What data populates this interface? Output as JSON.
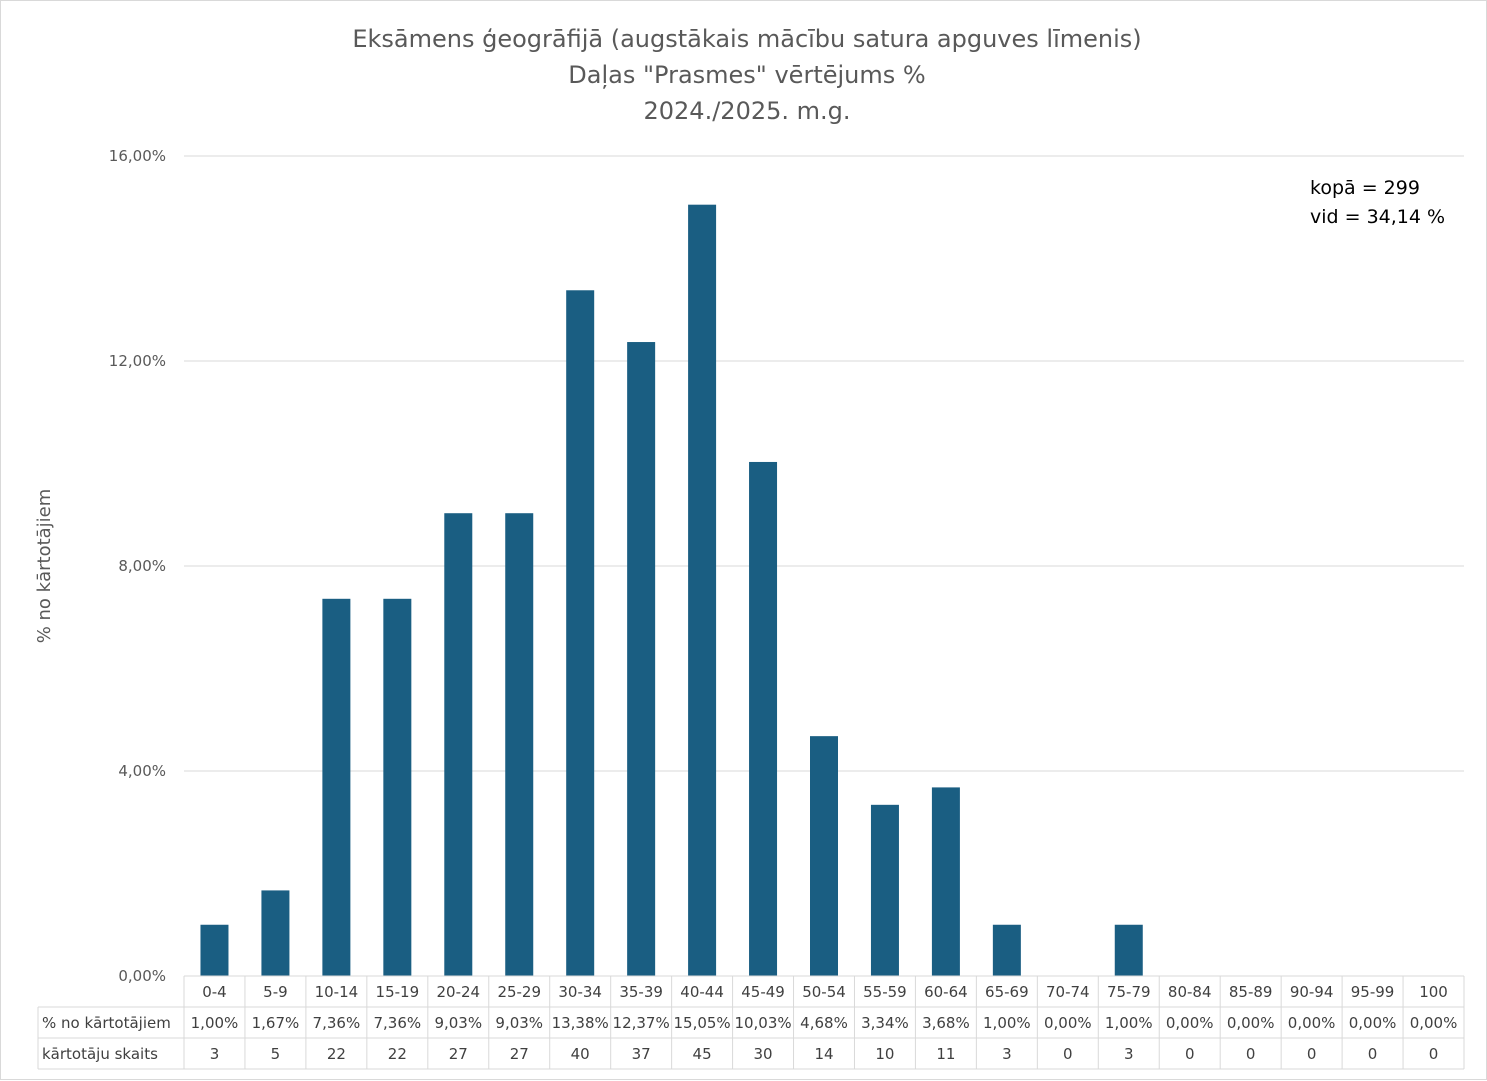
{
  "chart_data": {
    "type": "bar",
    "title_lines": [
      "Eksāmens ģeogrāfijā (augstākais mācību satura apguves līmenis)",
      "Daļas \"Prasmes\" vērtējums %",
      "2024./2025. m.g."
    ],
    "ylabel": "% no kārtotājiem",
    "ylim": [
      0,
      16
    ],
    "yticks": [
      0,
      4,
      8,
      12,
      16
    ],
    "ytick_labels": [
      "0,00%",
      "4,00%",
      "8,00%",
      "12,00%",
      "16,00%"
    ],
    "grid": true,
    "bar_color": "#1a5e82",
    "categories": [
      "0-4",
      "5-9",
      "10-14",
      "15-19",
      "20-24",
      "25-29",
      "30-34",
      "35-39",
      "40-44",
      "45-49",
      "50-54",
      "55-59",
      "60-64",
      "65-69",
      "70-74",
      "75-79",
      "80-84",
      "85-89",
      "90-94",
      "95-99",
      "100"
    ],
    "values": [
      1.0,
      1.67,
      7.36,
      7.36,
      9.03,
      9.03,
      13.38,
      12.37,
      15.05,
      10.03,
      4.68,
      3.34,
      3.68,
      1.0,
      0.0,
      1.0,
      0.0,
      0.0,
      0.0,
      0.0,
      0.0
    ],
    "data_table": {
      "rows": [
        {
          "label": "% no kārtotājiem",
          "values": [
            "1,00%",
            "1,67%",
            "7,36%",
            "7,36%",
            "9,03%",
            "9,03%",
            "13,38%",
            "12,37%",
            "15,05%",
            "10,03%",
            "4,68%",
            "3,34%",
            "3,68%",
            "1,00%",
            "0,00%",
            "1,00%",
            "0,00%",
            "0,00%",
            "0,00%",
            "0,00%",
            "0,00%"
          ]
        },
        {
          "label": "kārtotāju skaits",
          "values": [
            "3",
            "5",
            "22",
            "22",
            "27",
            "27",
            "40",
            "37",
            "45",
            "30",
            "14",
            "10",
            "11",
            "3",
            "0",
            "3",
            "0",
            "0",
            "0",
            "0",
            "0"
          ]
        }
      ]
    },
    "annotations": [
      "kopā = 299",
      "vid = 34,14 %"
    ]
  }
}
